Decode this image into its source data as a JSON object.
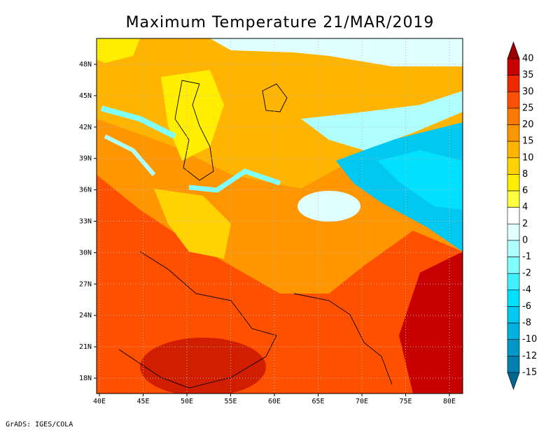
{
  "title": "Maximum Temperature 21/MAR/2019",
  "map": {
    "lon_ticks": [
      "40E",
      "45E",
      "50E",
      "55E",
      "60E",
      "65E",
      "70E",
      "75E",
      "80E"
    ],
    "lat_ticks": [
      "48N",
      "45N",
      "42N",
      "39N",
      "36N",
      "33N",
      "30N",
      "27N",
      "24N",
      "21N",
      "18N"
    ]
  },
  "colorbar": {
    "levels": [
      40,
      35,
      30,
      25,
      20,
      15,
      10,
      8,
      6,
      4,
      2,
      0,
      -1,
      -2,
      -4,
      -6,
      -8,
      -10,
      -12,
      -15
    ],
    "colors": [
      "#9b0000",
      "#c80000",
      "#eb2800",
      "#ff5000",
      "#ff7800",
      "#ff9600",
      "#ffb400",
      "#ffd200",
      "#ffee00",
      "#ffff40",
      "#ffffff",
      "#e0ffff",
      "#b0ffff",
      "#80ffff",
      "#40f0ff",
      "#00e0ff",
      "#00c8f0",
      "#00b0e0",
      "#0098c8",
      "#0080b0",
      "#006890"
    ]
  },
  "credit": "GrADS: IGES/COLA"
}
